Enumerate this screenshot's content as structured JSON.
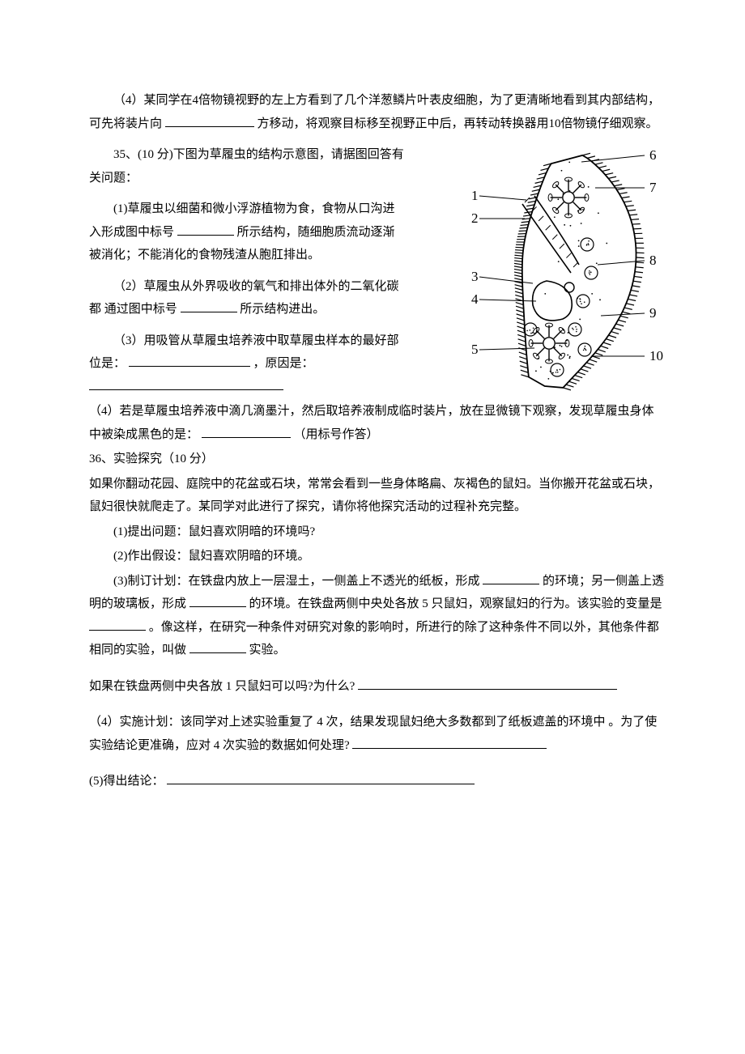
{
  "q4": {
    "text1": "（4）某同学在4倍物镜视野的左上方看到了几个洋葱鳞片叶表皮细胞，为了更清晰地看到其内部结构，可先将装片向",
    "text2": "方移动，将观察目标移至视野正中后，再转动转换器用10倍物镜仔细观察。"
  },
  "q35": {
    "header": "35、(10 分)下图为草履虫的结构示意图，请据图回答有关问题：",
    "p1a": "(1)草履虫以细菌和微小浮游植物为食，食物从口沟进入形成图中标号",
    "p1b": "所示结构，随细胞质流动逐渐被消化；不能消化的食物残渣从胞肛排出。",
    "p2a": "（2）草履虫从外界吸收的氧气和排出体外的二氧化碳都 通过图中标号",
    "p2b": "所示结构进出。",
    "p3a": "（3）用吸管从草履虫培养液中取草履虫样本的最好部位是：",
    "p3b": "，原因是：",
    "p4a": "（4）若是草履虫培养液中滴几滴墨汁，然后取培养液制成临时装片，放在显微镜下观察，发现草履虫身体中被染成黑色的是：",
    "p4b": "（用标号作答）"
  },
  "q36": {
    "header": "36、实验探究（10 分）",
    "intro": "如果你翻动花园、庭院中的花盆或石块，常常会看到一些身体略扁、灰褐色的鼠妇。当你搬开花盆或石块，鼠妇很快就爬走了。某同学对此进行了探究，请你将他探究活动的过程补充完整。",
    "s1": "(1)提出问题：鼠妇喜欢阴暗的环境吗?",
    "s2": "(2)作出假设：鼠妇喜欢阴暗的环境。",
    "s3a": "(3)制订计划：在铁盘内放上一层湿土，一侧盖上不透光的纸板，形成",
    "s3b": "的环境；另一侧盖上透明的玻璃板，形成",
    "s3c": "的环境。在铁盘两侧中央处各放 5 只鼠妇，观察鼠妇的行为。该实验的变量是",
    "s3d": "。像这样，在研究一种条件对研究对象的影响时，所进行的除了这种条件不同以外，其他条件都相同的实验，叫做",
    "s3e": "实验。",
    "s3f": "如果在铁盘两侧中央各放 1 只鼠妇可以吗?为什么?",
    "s4a": "（4）实施计划：该同学对上述实验重复了 4 次，结果发现鼠妇绝大多数都到了纸板遮盖的环境中 。为了使实验结论更准确，应对 4 次实验的数据如何处理?",
    "s5": "(5)得出结论："
  },
  "figure": {
    "labels_left": [
      "1",
      "2",
      "3",
      "4",
      "5"
    ],
    "labels_right": [
      "6",
      "7",
      "8",
      "9",
      "10"
    ],
    "left_y": [
      70,
      98,
      170,
      198,
      260
    ],
    "right_y": [
      20,
      60,
      150,
      215,
      268
    ],
    "body_fill": "#ffffff",
    "stroke": "#000000",
    "cilia_count": 100
  }
}
